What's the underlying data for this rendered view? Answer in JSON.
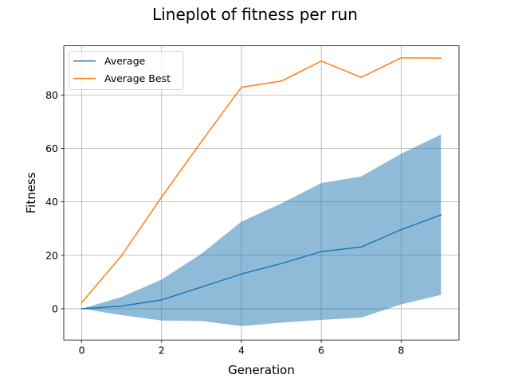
{
  "chart_data": {
    "type": "line",
    "title": "Lineplot of fitness per run",
    "xlabel": "Generation",
    "ylabel": "Fitness",
    "xlim": [
      -0.45,
      9.45
    ],
    "ylim": [
      -11.7,
      98.4
    ],
    "xticks": [
      0,
      2,
      4,
      6,
      8
    ],
    "xtick_labels": [
      "0",
      "2",
      "4",
      "6",
      "8"
    ],
    "yticks": [
      0,
      20,
      40,
      60,
      80
    ],
    "ytick_labels": [
      "0",
      "20",
      "40",
      "60",
      "80"
    ],
    "grid": true,
    "legend_position": "top-left",
    "x": [
      0,
      1,
      2,
      3,
      4,
      5,
      6,
      7,
      8,
      9
    ],
    "series": [
      {
        "name": "Average",
        "color": "#1f77b4",
        "values": [
          0,
          1.0,
          3.3,
          8.1,
          13.0,
          16.9,
          21.4,
          23.1,
          29.6,
          35.1
        ]
      },
      {
        "name": "Average Best",
        "color": "#ff7f0e",
        "values": [
          2.3,
          19.9,
          41.8,
          62.6,
          82.9,
          85.2,
          92.7,
          86.6,
          93.9,
          93.8
        ]
      }
    ],
    "band": {
      "name": "Average spread",
      "color": "#1f77b4",
      "opacity": 0.5,
      "lower": [
        0,
        -2.4,
        -4.4,
        -4.6,
        -6.5,
        -5.2,
        -4.2,
        -3.3,
        1.6,
        5.2
      ],
      "upper": [
        0,
        4.4,
        10.9,
        20.6,
        32.6,
        39.4,
        47.0,
        49.5,
        58.0,
        65.2
      ]
    }
  }
}
